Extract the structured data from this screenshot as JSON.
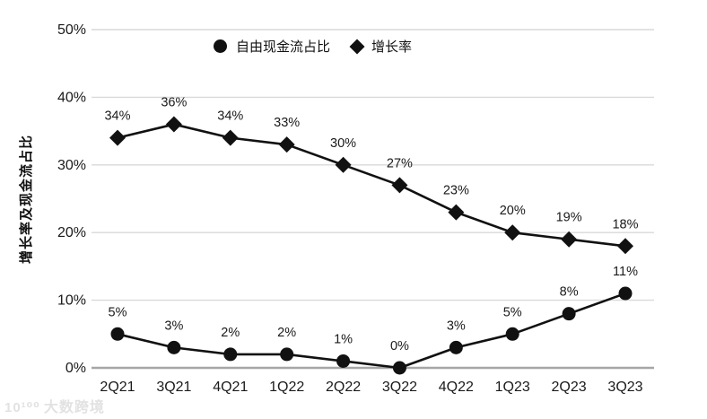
{
  "watermark": {
    "logo": "10¹⁰⁰",
    "text": "大数跨境"
  },
  "chart_data": {
    "type": "line",
    "title": "",
    "xlabel": "",
    "ylabel": "增长率及现金流占比",
    "categories": [
      "2Q21",
      "3Q21",
      "4Q21",
      "1Q22",
      "2Q22",
      "3Q22",
      "4Q22",
      "1Q23",
      "2Q23",
      "3Q23"
    ],
    "series": [
      {
        "name": "自由现金流占比",
        "marker": "circle",
        "values": [
          5,
          3,
          2,
          2,
          1,
          0,
          3,
          5,
          8,
          11
        ]
      },
      {
        "name": "增长率",
        "marker": "diamond",
        "values": [
          34,
          36,
          34,
          33,
          30,
          27,
          23,
          20,
          19,
          18
        ]
      }
    ],
    "ylim": [
      0,
      50
    ],
    "yticks": [
      0,
      10,
      20,
      30,
      40,
      50
    ],
    "tick_suffix": "%",
    "grid": true,
    "legend_position": "top",
    "colors": {
      "series": "#111111",
      "gridline": "#d9d9d9",
      "axisline": "#a6a6a6",
      "text": "#1a1a1a",
      "watermark": "#e2e2e2"
    }
  }
}
